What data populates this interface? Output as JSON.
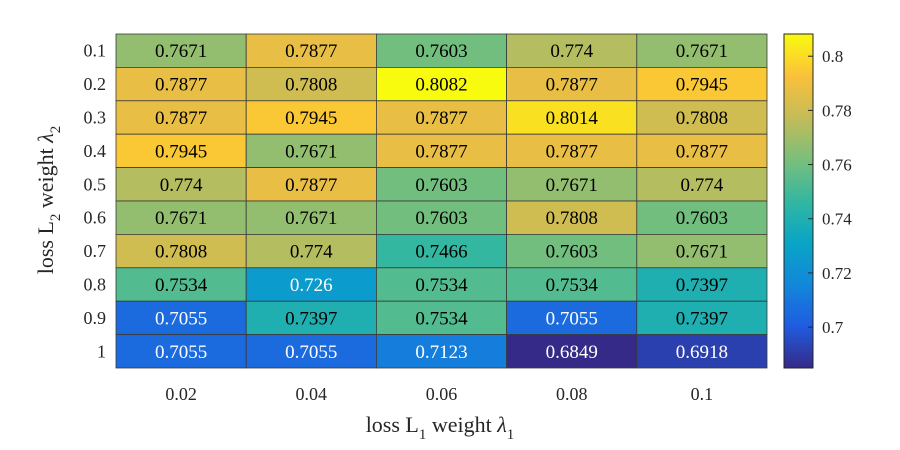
{
  "chart_data": {
    "type": "heatmap",
    "x": {
      "tick_labels": [
        "0.02",
        "0.04",
        "0.06",
        "0.08",
        "0.1"
      ],
      "label": {
        "base": "loss L",
        "sub1": "1",
        "mid": " weight ",
        "greek": "λ",
        "sub2": "1"
      }
    },
    "y": {
      "tick_labels": [
        "0.1",
        "0.2",
        "0.3",
        "0.4",
        "0.5",
        "0.6",
        "0.7",
        "0.8",
        "0.9",
        "1"
      ],
      "label": {
        "base": "loss L",
        "sub1": "2",
        "mid": " weight ",
        "greek": "λ",
        "sub2": "2"
      }
    },
    "values": [
      [
        "0.7671",
        "0.7877",
        "0.7603",
        "0.774",
        "0.7671"
      ],
      [
        "0.7877",
        "0.7808",
        "0.8082",
        "0.7877",
        "0.7945"
      ],
      [
        "0.7877",
        "0.7945",
        "0.7877",
        "0.8014",
        "0.7808"
      ],
      [
        "0.7945",
        "0.7671",
        "0.7877",
        "0.7877",
        "0.7877"
      ],
      [
        "0.774",
        "0.7877",
        "0.7603",
        "0.7671",
        "0.774"
      ],
      [
        "0.7671",
        "0.7671",
        "0.7603",
        "0.7808",
        "0.7603"
      ],
      [
        "0.7808",
        "0.774",
        "0.7466",
        "0.7603",
        "0.7671"
      ],
      [
        "0.7534",
        "0.726",
        "0.7534",
        "0.7534",
        "0.7397"
      ],
      [
        "0.7055",
        "0.7397",
        "0.7534",
        "0.7055",
        "0.7397"
      ],
      [
        "0.7055",
        "0.7055",
        "0.7123",
        "0.6849",
        "0.6918"
      ]
    ],
    "colorbar": {
      "colormap": "parula",
      "range": [
        0.6849,
        0.8082
      ],
      "tick_labels": [
        "0.7",
        "0.72",
        "0.74",
        "0.76",
        "0.78",
        "0.8"
      ]
    },
    "grid": true,
    "legend": "colorbar-right"
  }
}
